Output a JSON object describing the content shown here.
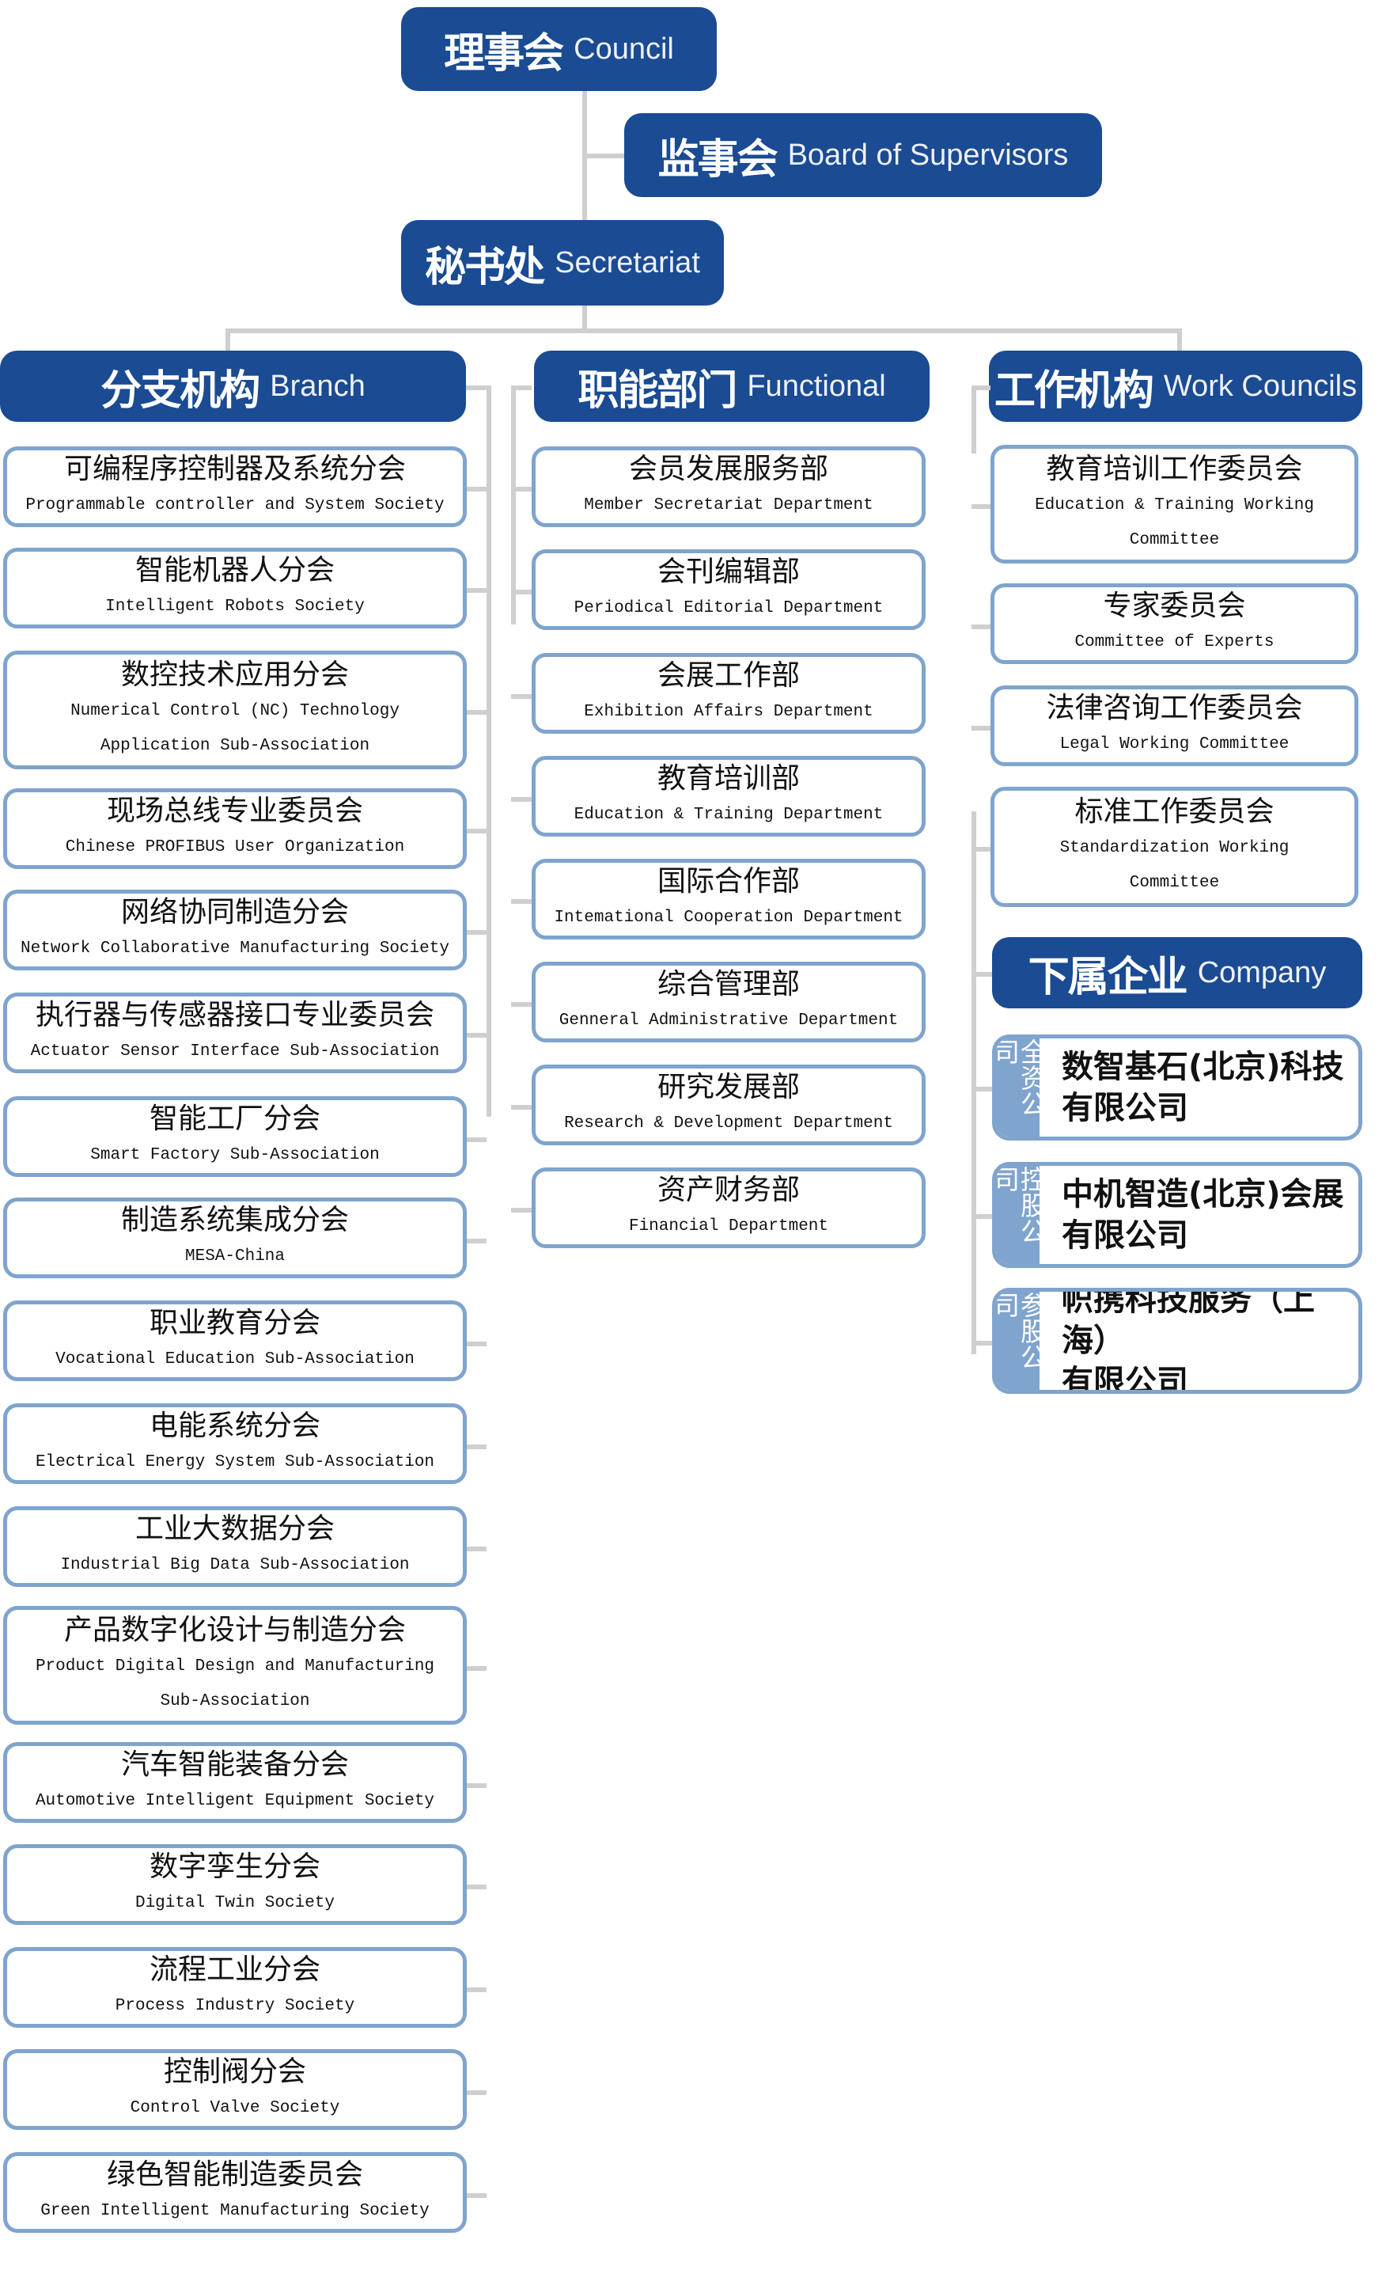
{
  "colors": {
    "header": "#1a4b93",
    "border": "#7fa4cd",
    "connector": "#cfcfcf"
  },
  "top": {
    "council": {
      "zh": "理事会",
      "en": "Council"
    },
    "supervisors": {
      "zh": "监事会",
      "en": "Board of Supervisors"
    },
    "secretariat": {
      "zh": "秘书处",
      "en": "Secretariat"
    }
  },
  "branch": {
    "zh": "分支机构",
    "en": "Branch",
    "items": [
      {
        "zh": "可编程序控制器及系统分会",
        "en": "Programmable controller and System Society"
      },
      {
        "zh": "智能机器人分会",
        "en": "Intelligent Robots Society"
      },
      {
        "zh": "数控技术应用分会",
        "en": "Numerical Control (NC) Technology\nApplication Sub-Association"
      },
      {
        "zh": "现场总线专业委员会",
        "en": "Chinese PROFIBUS User Organization"
      },
      {
        "zh": "网络协同制造分会",
        "en": "Network Collaborative Manufacturing Society"
      },
      {
        "zh": "执行器与传感器接口专业委员会",
        "en": "Actuator Sensor Interface Sub-Association"
      },
      {
        "zh": "智能工厂分会",
        "en": "Smart Factory Sub-Association"
      },
      {
        "zh": "制造系统集成分会",
        "en": "MESA-China"
      },
      {
        "zh": "职业教育分会",
        "en": "Vocational Education Sub-Association"
      },
      {
        "zh": "电能系统分会",
        "en": "Electrical Energy System Sub-Association"
      },
      {
        "zh": "工业大数据分会",
        "en": "Industrial Big Data Sub-Association"
      },
      {
        "zh": "产品数字化设计与制造分会",
        "en": "Product Digital Design and Manufacturing\nSub-Association"
      },
      {
        "zh": "汽车智能装备分会",
        "en": "Automotive Intelligent Equipment Society"
      },
      {
        "zh": "数字孪生分会",
        "en": "Digital Twin Society"
      },
      {
        "zh": "流程工业分会",
        "en": "Process Industry Society"
      },
      {
        "zh": "控制阀分会",
        "en": "Control Valve Society"
      },
      {
        "zh": "绿色智能制造委员会",
        "en": "Green Intelligent Manufacturing Society"
      }
    ]
  },
  "functional": {
    "zh": "职能部门",
    "en": "Functional",
    "items": [
      {
        "zh": "会员发展服务部",
        "en": "Member Secretariat Department"
      },
      {
        "zh": "会刊编辑部",
        "en": "Periodical Editorial Department"
      },
      {
        "zh": "会展工作部",
        "en": "Exhibition Affairs Department"
      },
      {
        "zh": "教育培训部",
        "en": "Education & Training Department"
      },
      {
        "zh": "国际合作部",
        "en": "Intemational Cooperation Department"
      },
      {
        "zh": "综合管理部",
        "en": "Genneral Administrative Department"
      },
      {
        "zh": "研究发展部",
        "en": "Research & Development Department"
      },
      {
        "zh": "资产财务部",
        "en": "Financial Department"
      }
    ]
  },
  "work": {
    "zh": "工作机构",
    "en": "Work Councils",
    "items": [
      {
        "zh": "教育培训工作委员会",
        "en": "Education & Training Working\nCommittee"
      },
      {
        "zh": "专家委员会",
        "en": "Committee of Experts"
      },
      {
        "zh": "法律咨询工作委员会",
        "en": "Legal Working Committee"
      },
      {
        "zh": "标准工作委员会",
        "en": "Standardization Working\nCommittee"
      }
    ]
  },
  "company": {
    "zh": "下属企业",
    "en": "Company",
    "items": [
      {
        "tag": "全资公司",
        "name": "数智基石(北京)科技\n有限公司"
      },
      {
        "tag": "控股公司",
        "name": "中机智造(北京)会展\n有限公司"
      },
      {
        "tag": "参股公司",
        "name": "帜携科技服务（上海）\n有限公司"
      }
    ]
  }
}
